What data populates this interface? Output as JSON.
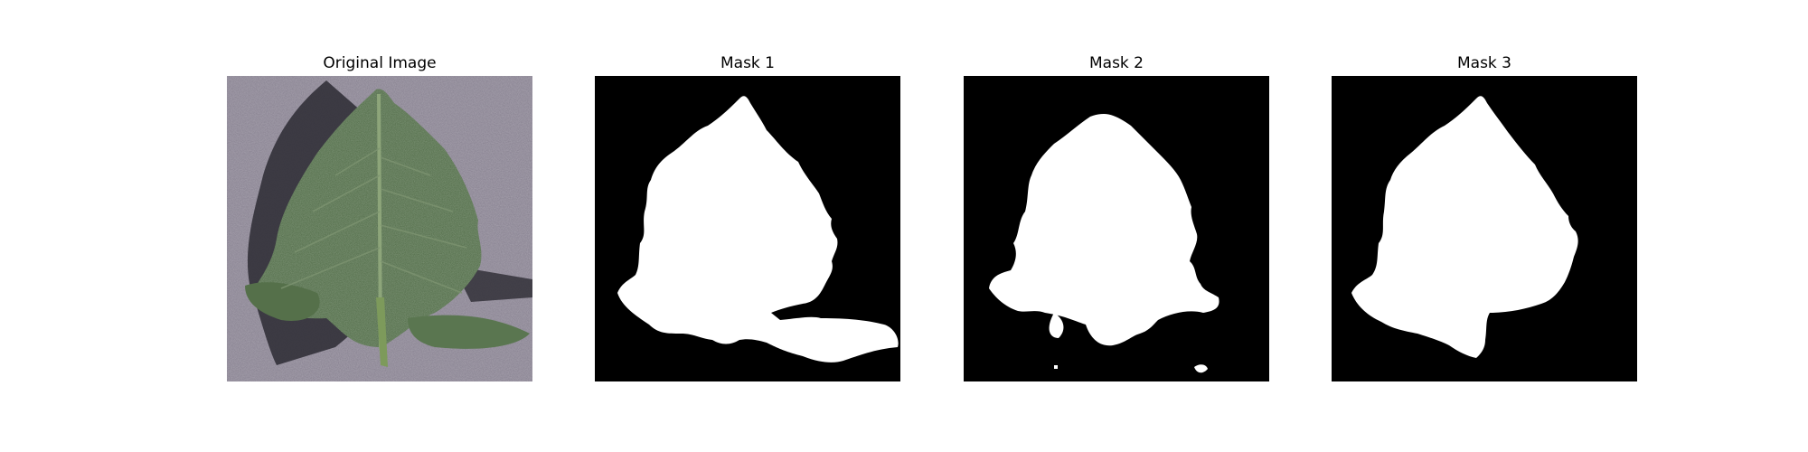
{
  "figure": {
    "panels": [
      {
        "title": "Original Image"
      },
      {
        "title": "Mask 1"
      },
      {
        "title": "Mask 2"
      },
      {
        "title": "Mask 3"
      }
    ]
  },
  "colors": {
    "background": "#ffffff",
    "mask_background": "#000000",
    "mask_foreground": "#ffffff",
    "leaf_green": "#4f6b45",
    "ground_gray": "#8a8494"
  }
}
